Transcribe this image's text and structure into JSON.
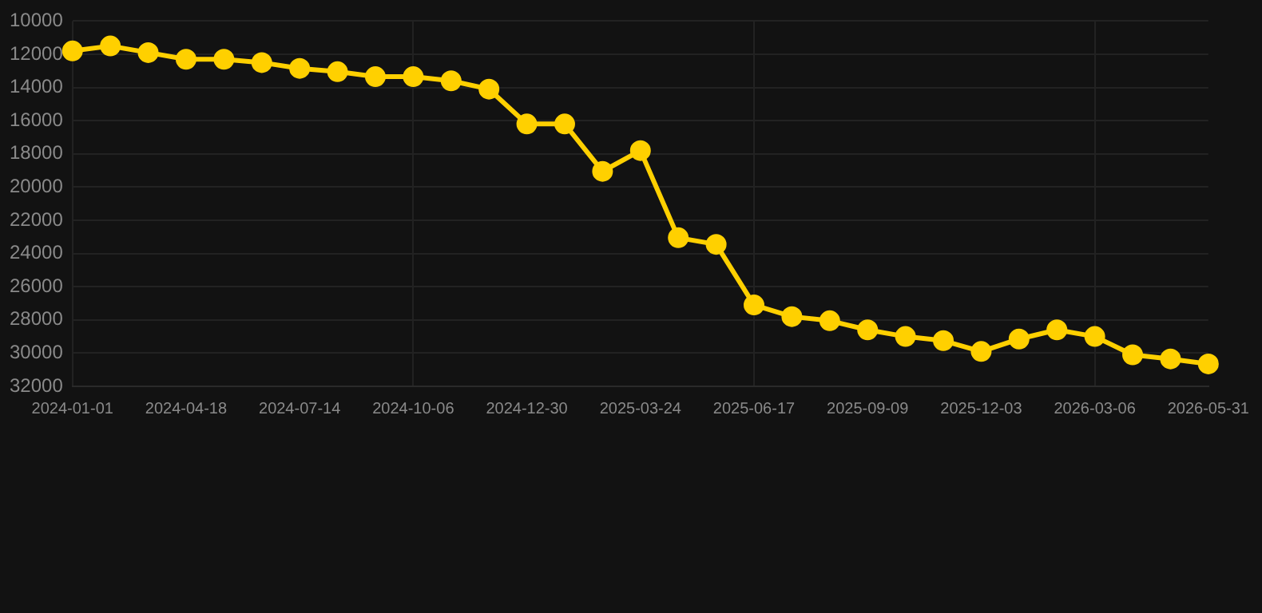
{
  "chart_data": {
    "type": "line",
    "categories": [
      "2024-01-01",
      null,
      null,
      "2024-04-18",
      null,
      null,
      "2024-07-14",
      null,
      null,
      "2024-10-06",
      null,
      null,
      "2024-12-30",
      null,
      null,
      "2025-03-24",
      null,
      null,
      "2025-06-17",
      null,
      null,
      "2025-09-09",
      null,
      null,
      "2025-12-03",
      null,
      null,
      "2026-03-06",
      null,
      null,
      "2026-05-31"
    ],
    "series": [
      {
        "color": "#ffd000",
        "values": [
          11800,
          11500,
          11900,
          12300,
          12300,
          12500,
          12850,
          13050,
          13350,
          13350,
          13600,
          14100,
          16200,
          16200,
          19050,
          17800,
          23050,
          23450,
          27100,
          27800,
          28050,
          28600,
          29000,
          29250,
          29900,
          29150,
          28600,
          29000,
          30100,
          30350,
          30650
        ]
      }
    ],
    "ylim": [
      32000,
      10000
    ],
    "yticks": [
      10000,
      12000,
      14000,
      16000,
      18000,
      20000,
      22000,
      24000,
      26000,
      28000,
      30000,
      32000
    ],
    "grid": true,
    "marker": "circle",
    "line_style": "solid"
  }
}
